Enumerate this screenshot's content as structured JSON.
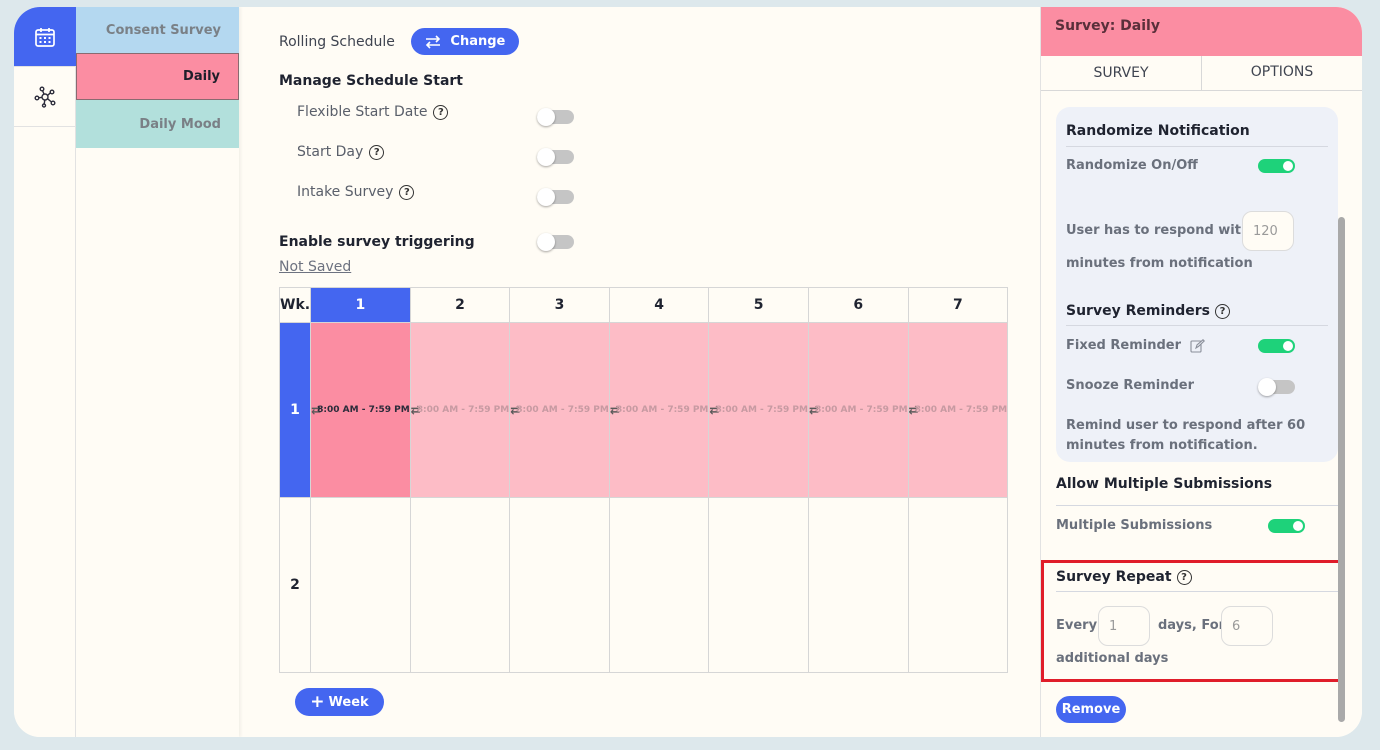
{
  "colors": {
    "accent": "#4466f0",
    "pink": "#fb8da2",
    "light_pink": "#fdbcc6",
    "consent_blue": "#b4d8f0",
    "mood_teal": "#b2e0dc",
    "toggle_on": "#1ed27a",
    "highlight": "#e01d2a"
  },
  "rail": {
    "items": [
      {
        "icon": "calendar-icon",
        "active": true
      },
      {
        "icon": "network-nodes-icon",
        "active": false
      }
    ]
  },
  "surveys": [
    "Consent Survey",
    "Daily",
    "Daily Mood"
  ],
  "main": {
    "rolling_label": "Rolling Schedule",
    "change_label": "Change",
    "manage_title": "Manage Schedule Start",
    "options": [
      {
        "label": "Flexible Start Date",
        "on": false
      },
      {
        "label": "Start Day",
        "on": false
      },
      {
        "label": "Intake Survey",
        "on": false
      }
    ],
    "trigger_label": "Enable survey triggering",
    "not_saved": "Not Saved",
    "grid": {
      "week_header": "Wk.",
      "days": [
        "1",
        "2",
        "3",
        "4",
        "5",
        "6",
        "7"
      ],
      "weeks": [
        "1",
        "2"
      ],
      "slot_text": "8:00 AM - 7:59 PM"
    },
    "week_button": "Week"
  },
  "panel": {
    "header": "Survey: Daily",
    "tabs": [
      "SURVEY",
      "OPTIONS"
    ],
    "randomize_title": "Randomize Notification",
    "randomize_label": "Randomize On/Off",
    "respond_text_1": "User has to respond within",
    "respond_value": "120",
    "respond_text_2": "minutes from notification",
    "reminders_title": "Survey Reminders",
    "fixed_label": "Fixed Reminder",
    "snooze_label": "Snooze Reminder",
    "remind_text": "Remind user to respond after 60 minutes from notification.",
    "multiple_title": "Allow Multiple Submissions",
    "multiple_label": "Multiple Submissions",
    "repeat_title": "Survey Repeat",
    "every_label": "Every",
    "every_value": "1",
    "days_for_label": "days, For",
    "for_value": "6",
    "additional_label": "additional days",
    "remove_label": "Remove"
  }
}
